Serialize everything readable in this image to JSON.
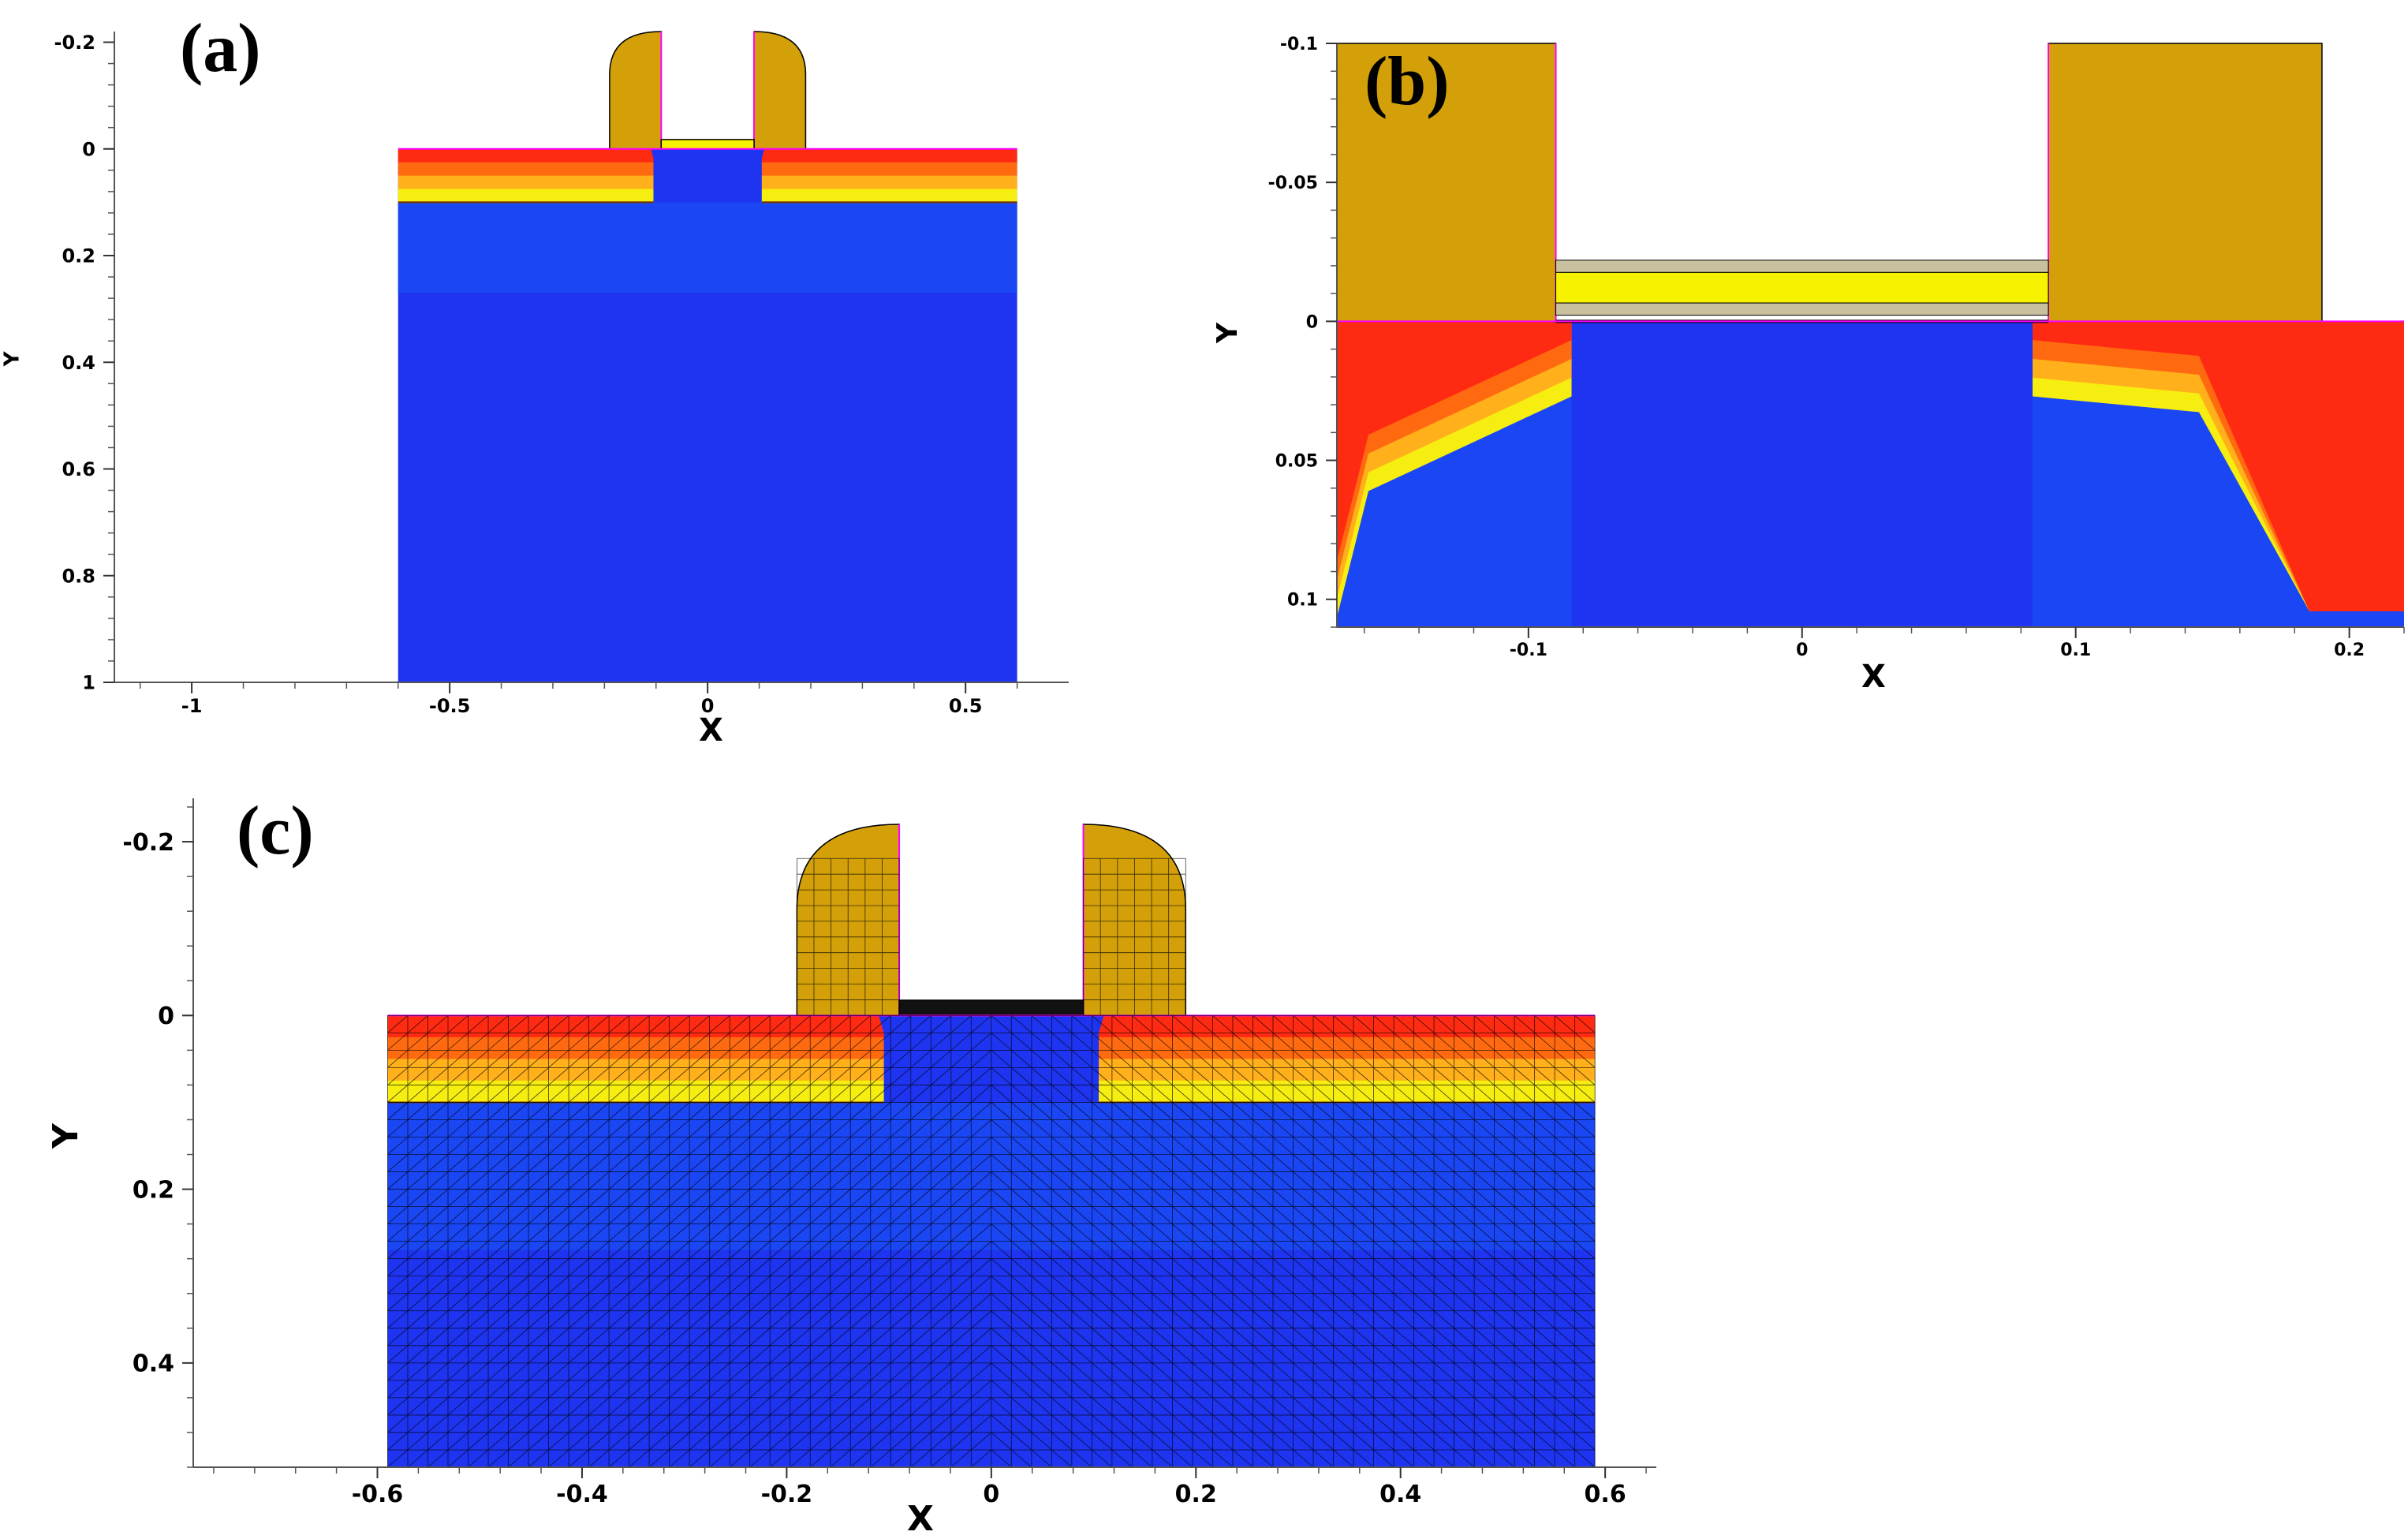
{
  "colors": {
    "substrate": "#1e34f0",
    "substrate_light": "#1a46f4",
    "oxide": "#d3a009",
    "doping_high": "#ff2a12",
    "doping_mid": "#ff6a10",
    "doping_low": "#ffb01a",
    "doping_edge": "#f6ee10",
    "boundary": "#ff00ff",
    "poly_gate": "#f6f200",
    "gate_layer": "#c9c0a0"
  },
  "chart_data": [
    {
      "type": "other",
      "panel_label": "(a)",
      "xlabel": "X",
      "ylabel": "Y",
      "x_ticks": [
        "-1",
        "-0.5",
        "0",
        "0.5"
      ],
      "y_ticks": [
        "-0.2",
        "0",
        "0.2",
        "0.4",
        "0.6",
        "0.8",
        "1"
      ],
      "xlim": [
        -1.15,
        0.7
      ],
      "ylim": [
        1.0,
        -0.22
      ],
      "structure": {
        "substrate_x": [
          -0.6,
          0.6
        ],
        "substrate_y": [
          0,
          1.0
        ],
        "junction_depth": 0.1,
        "gate_x": [
          -0.09,
          0.09
        ],
        "spacer_width": 0.1,
        "spacer_top": -0.22
      }
    },
    {
      "type": "other",
      "panel_label": "(b)",
      "xlabel": "X",
      "ylabel": "Y",
      "x_ticks": [
        "-0.1",
        "0",
        "0.1",
        "0.2"
      ],
      "y_ticks": [
        "-0.1",
        "-0.05",
        "0",
        "0.05",
        "0.1"
      ],
      "xlim": [
        -0.17,
        0.22
      ],
      "ylim": [
        0.11,
        -0.1
      ],
      "structure": {
        "gate_x": [
          -0.09,
          0.09
        ],
        "spacer_outer": [
          -0.17,
          0.19
        ],
        "junction_depth": 0.027,
        "gate_stack_top": -0.022
      }
    },
    {
      "type": "other",
      "panel_label": "(c)",
      "xlabel": "X",
      "ylabel": "Y",
      "x_ticks": [
        "-0.6",
        "-0.4",
        "-0.2",
        "0",
        "0.2",
        "0.4",
        "0.6"
      ],
      "y_ticks": [
        "-0.2",
        "0",
        "0.2",
        "0.4"
      ],
      "xlim": [
        -0.78,
        0.65
      ],
      "ylim": [
        0.52,
        -0.25
      ],
      "structure": {
        "substrate_x": [
          -0.59,
          0.59
        ],
        "substrate_y": [
          0,
          0.52
        ],
        "junction_depth": 0.1,
        "gate_x": [
          -0.09,
          0.09
        ],
        "spacer_width": 0.1,
        "spacer_top": -0.22,
        "mesh": true
      }
    }
  ]
}
